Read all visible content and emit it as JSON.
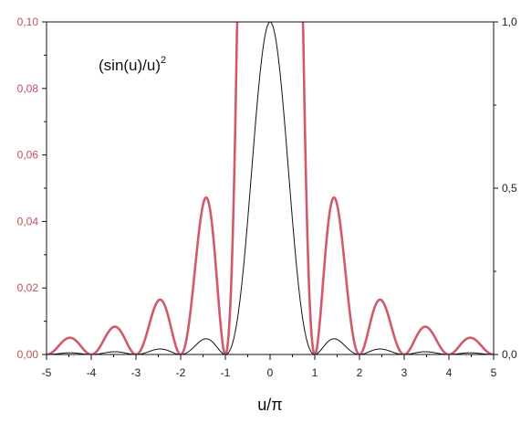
{
  "chart_data": {
    "type": "line",
    "title": "",
    "annotation": {
      "base": "(sin(u)/u)",
      "superscript": "2"
    },
    "xlabel": "u/π",
    "x_ticks": [
      "-5",
      "-4",
      "-3",
      "-2",
      "-1",
      "0",
      "1",
      "2",
      "3",
      "4",
      "5"
    ],
    "x_range": [
      -5,
      5
    ],
    "y_left_ticks": [
      "0,00",
      "0,02",
      "0,04",
      "0,06",
      "0,08",
      "0,10"
    ],
    "y_left_range": [
      0,
      0.1
    ],
    "y_right_ticks": [
      "0,0",
      "0,5",
      "1,0"
    ],
    "y_right_range": [
      0,
      1.0
    ],
    "grid": false,
    "series": [
      {
        "function": "(sin(pi*x)/(pi*x))^2",
        "axis": "left",
        "color": "#d05a6a",
        "clipped_at_top": true,
        "sample_points": [
          {
            "x": -4.5,
            "y": 0.005
          },
          {
            "x": -3.5,
            "y": 0.0083
          },
          {
            "x": -2.5,
            "y": 0.0162
          },
          {
            "x": -1.43,
            "y": 0.047
          },
          {
            "x": -1.0,
            "y": 0.0
          },
          {
            "x": 1.0,
            "y": 0.0
          },
          {
            "x": 1.43,
            "y": 0.047
          },
          {
            "x": 2.5,
            "y": 0.0162
          },
          {
            "x": 3.5,
            "y": 0.0083
          },
          {
            "x": 4.5,
            "y": 0.005
          }
        ]
      },
      {
        "function": "(sin(pi*x)/(pi*x))^2",
        "axis": "right",
        "color": "#111111",
        "sample_points": [
          {
            "x": -1.0,
            "y": 0.0
          },
          {
            "x": -0.5,
            "y": 0.405
          },
          {
            "x": 0.0,
            "y": 1.0
          },
          {
            "x": 0.5,
            "y": 0.405
          },
          {
            "x": 1.0,
            "y": 0.0
          },
          {
            "x": 1.43,
            "y": 0.047
          }
        ]
      }
    ]
  }
}
